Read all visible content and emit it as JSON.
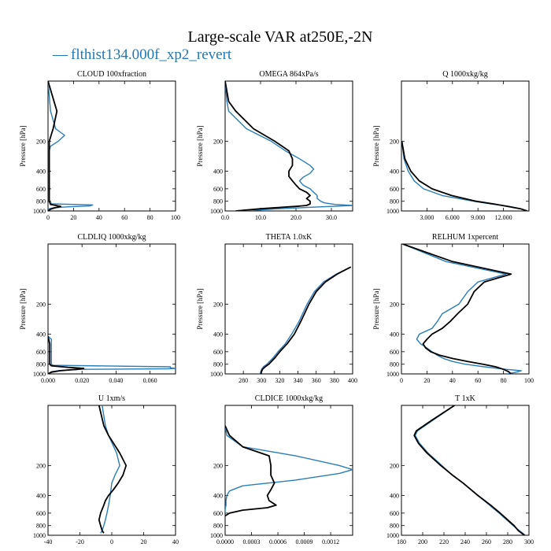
{
  "title": "Large-scale VAR at250E,-2N",
  "legend": {
    "marker": "—",
    "label": "flthist134.000f_xp2_revert",
    "color": "#2a7db8"
  },
  "colors": {
    "ref": "#000000",
    "test": "#2a7db8"
  },
  "chart_data": [
    {
      "type": "line",
      "title": "CLOUD  100xfraction",
      "ylabel": "Pressure [hPa]",
      "xlim": [
        0,
        100
      ],
      "ylim": [
        1000,
        50
      ],
      "xticks": [
        0,
        20,
        40,
        60,
        80,
        100
      ],
      "xticklabels": [
        "0",
        "20",
        "40",
        "60",
        "80",
        "100"
      ],
      "yticks": [
        200,
        400,
        600,
        800,
        1000
      ],
      "yticklabels": [
        "200",
        "400",
        "600",
        "800",
        "1000"
      ],
      "series": [
        {
          "color": "#2a7db8",
          "p": [
            50,
            100,
            150,
            175,
            200,
            225,
            250,
            300,
            400,
            500,
            600,
            700,
            800,
            850,
            870,
            890,
            910,
            930,
            950,
            980,
            1000
          ],
          "x": [
            0,
            2,
            6,
            13,
            8,
            2,
            1,
            1,
            1,
            1,
            1,
            1,
            1,
            3,
            35,
            33,
            15,
            4,
            1,
            0,
            0
          ]
        },
        {
          "color": "#000000",
          "p": [
            50,
            100,
            150,
            200,
            300,
            400,
            500,
            600,
            700,
            800,
            860,
            880,
            900,
            920,
            940,
            960,
            980,
            1000
          ],
          "x": [
            0,
            7,
            4,
            1,
            1,
            1,
            1,
            1,
            1,
            1,
            2,
            6,
            10,
            7,
            4,
            2,
            1,
            0
          ]
        }
      ]
    },
    {
      "type": "line",
      "title": "OMEGA  864xPa/s",
      "ylabel": "Pressure [hPa]",
      "xlim": [
        0,
        36
      ],
      "ylim": [
        1000,
        50
      ],
      "xticks": [
        0,
        10,
        20,
        30
      ],
      "xticklabels": [
        "0.0",
        "10.0",
        "20.0",
        "30.0"
      ],
      "yticks": [
        200,
        400,
        600,
        800,
        1000
      ],
      "yticklabels": [
        "200",
        "400",
        "600",
        "800",
        "1000"
      ],
      "series": [
        {
          "color": "#2a7db8",
          "p": [
            50,
            80,
            100,
            150,
            200,
            250,
            300,
            350,
            380,
            420,
            460,
            500,
            550,
            600,
            650,
            700,
            750,
            800,
            830,
            860,
            880,
            900,
            950,
            1000
          ],
          "x": [
            0,
            0.5,
            1,
            6,
            13,
            17,
            21,
            24,
            25,
            24,
            22,
            21,
            22,
            24,
            25,
            26,
            26,
            27,
            28,
            31,
            36,
            30,
            15,
            5
          ]
        },
        {
          "color": "#000000",
          "p": [
            50,
            80,
            100,
            150,
            200,
            250,
            300,
            350,
            400,
            450,
            500,
            550,
            600,
            650,
            700,
            750,
            800,
            850,
            880,
            900,
            950,
            1000
          ],
          "x": [
            0,
            1,
            3,
            8,
            14,
            18,
            19,
            19,
            18,
            18,
            19,
            20,
            21,
            23,
            24,
            23,
            24,
            24,
            23,
            20,
            10,
            3
          ]
        }
      ]
    },
    {
      "type": "line",
      "title": "Q  1000xkg/kg",
      "ylabel": "Pressure [hPa]",
      "xlim": [
        0,
        15
      ],
      "ylim": [
        1000,
        50
      ],
      "xticks": [
        3,
        6,
        9,
        12
      ],
      "xticklabels": [
        "3.000",
        "6.000",
        "9.000",
        "12.000"
      ],
      "yticks": [
        200,
        400,
        600,
        800,
        1000
      ],
      "yticklabels": [
        "200",
        "400",
        "600",
        "800",
        "1000"
      ],
      "series": [
        {
          "color": "#2a7db8",
          "p": [
            200,
            300,
            400,
            500,
            600,
            700,
            800,
            850,
            900,
            950,
            1000
          ],
          "x": [
            0.05,
            0.3,
            0.8,
            1.5,
            2.6,
            4.8,
            8.5,
            10.5,
            12.7,
            14.0,
            14.8
          ]
        },
        {
          "color": "#000000",
          "p": [
            200,
            300,
            400,
            500,
            600,
            700,
            800,
            850,
            900,
            950,
            1000
          ],
          "x": [
            0.05,
            0.4,
            1.1,
            2.1,
            3.6,
            5.9,
            8.8,
            10.8,
            12.5,
            14.0,
            14.8
          ]
        }
      ]
    },
    {
      "type": "line",
      "title": "CLDLIQ  1000xkg/kg",
      "ylabel": "Pressure [hPa]",
      "xlim": [
        0,
        0.075
      ],
      "ylim": [
        1000,
        50
      ],
      "xticks": [
        0,
        0.02,
        0.04,
        0.06
      ],
      "xticklabels": [
        "0.000",
        "0.020",
        "0.040",
        "0.060"
      ],
      "yticks": [
        200,
        400,
        600,
        800,
        1000
      ],
      "yticklabels": [
        "200",
        "400",
        "600",
        "800",
        "1000"
      ],
      "series": [
        {
          "color": "#2a7db8",
          "p": [
            420,
            450,
            500,
            600,
            700,
            800,
            820,
            850,
            870,
            880,
            890,
            900,
            920,
            950,
            1000
          ],
          "x": [
            0,
            0.002,
            0.002,
            0.002,
            0.002,
            0.002,
            0.003,
            0.072,
            0.072,
            0.075,
            0.07,
            0.02,
            0.008,
            0.002,
            0
          ]
        },
        {
          "color": "#000000",
          "p": [
            420,
            500,
            600,
            700,
            800,
            830,
            860,
            880,
            900,
            930,
            960,
            1000
          ],
          "x": [
            0,
            0.001,
            0.001,
            0.001,
            0.001,
            0.002,
            0.012,
            0.021,
            0.017,
            0.007,
            0.002,
            0
          ]
        }
      ]
    },
    {
      "type": "line",
      "title": "THETA  1.0xK",
      "ylabel": "Pressure [hPa]",
      "xlim": [
        260,
        400
      ],
      "ylim": [
        1000,
        50
      ],
      "xticks": [
        280,
        300,
        320,
        340,
        360,
        380,
        400
      ],
      "xticklabels": [
        "280",
        "300",
        "320",
        "340",
        "360",
        "380",
        "400"
      ],
      "yticks": [
        200,
        400,
        600,
        800,
        1000
      ],
      "yticklabels": [
        "200",
        "400",
        "600",
        "800",
        "1000"
      ],
      "series": [
        {
          "color": "#2a7db8",
          "p": [
            85,
            100,
            120,
            150,
            200,
            300,
            400,
            500,
            600,
            700,
            800,
            850,
            900,
            950,
            1000
          ],
          "x": [
            398,
            382,
            368,
            358,
            350,
            341,
            333,
            326,
            318,
            312,
            306,
            302,
            300,
            299,
            299
          ]
        },
        {
          "color": "#000000",
          "p": [
            85,
            100,
            120,
            150,
            200,
            300,
            400,
            500,
            600,
            700,
            800,
            850,
            900,
            950,
            1000
          ],
          "x": [
            398,
            383,
            370,
            360,
            352,
            343,
            336,
            328,
            320,
            314,
            308,
            304,
            301,
            300,
            299
          ]
        }
      ]
    },
    {
      "type": "line",
      "title": "RELHUM  1xpercent",
      "ylabel": "Pressure [hPa]",
      "xlim": [
        0,
        100
      ],
      "ylim": [
        1000,
        50
      ],
      "xticks": [
        0,
        20,
        40,
        60,
        80,
        100
      ],
      "xticklabels": [
        "0",
        "20",
        "40",
        "60",
        "80",
        "100"
      ],
      "yticks": [
        200,
        400,
        600,
        800,
        1000
      ],
      "yticklabels": [
        "200",
        "400",
        "600",
        "800",
        "1000"
      ],
      "series": [
        {
          "color": "#2a7db8",
          "p": [
            50,
            75,
            100,
            120,
            150,
            200,
            250,
            300,
            350,
            400,
            450,
            500,
            550,
            600,
            650,
            700,
            750,
            800,
            850,
            900,
            930,
            960,
            1000
          ],
          "x": [
            1,
            35,
            82,
            60,
            52,
            45,
            32,
            28,
            24,
            14,
            12,
            15,
            20,
            24,
            28,
            33,
            40,
            50,
            65,
            82,
            94,
            90,
            83
          ]
        },
        {
          "color": "#000000",
          "p": [
            50,
            75,
            100,
            120,
            150,
            200,
            250,
            300,
            350,
            400,
            450,
            500,
            550,
            600,
            650,
            700,
            750,
            800,
            850,
            900,
            950,
            1000
          ],
          "x": [
            1,
            40,
            86,
            65,
            57,
            52,
            44,
            38,
            32,
            24,
            20,
            17,
            19,
            23,
            30,
            40,
            52,
            64,
            74,
            80,
            84,
            86
          ]
        }
      ]
    },
    {
      "type": "line",
      "title": "U  1xm/s",
      "ylabel": "",
      "xlim": [
        -40,
        40
      ],
      "ylim": [
        1000,
        50
      ],
      "xticks": [
        -40,
        -20,
        0,
        20,
        40
      ],
      "xticklabels": [
        "-40",
        "-20",
        "0",
        "20",
        "40"
      ],
      "yticks": [
        200,
        400,
        600,
        800,
        1000
      ],
      "yticklabels": [
        "200",
        "400",
        "600",
        "800",
        "1000"
      ],
      "series": [
        {
          "color": "#2a7db8",
          "p": [
            50,
            80,
            100,
            150,
            200,
            250,
            300,
            400,
            500,
            600,
            700,
            800,
            900,
            950
          ],
          "x": [
            -6,
            -4,
            -2,
            3,
            5,
            2,
            0,
            -1,
            -2,
            -3,
            -4,
            -5,
            -6,
            -7
          ]
        },
        {
          "color": "#000000",
          "p": [
            50,
            80,
            100,
            150,
            200,
            250,
            300,
            350,
            400,
            450,
            500,
            600,
            700,
            800,
            900,
            950
          ],
          "x": [
            -8,
            -5,
            -2,
            5,
            9,
            7,
            4,
            1,
            -2,
            -4,
            -5,
            -7,
            -8,
            -7,
            -6,
            -5
          ]
        }
      ]
    },
    {
      "type": "line",
      "title": "CLDICE  1000xkg/kg",
      "ylabel": "",
      "xlim": [
        0,
        0.00145
      ],
      "ylim": [
        1000,
        50
      ],
      "xticks": [
        0,
        0.0003,
        0.0006,
        0.0009,
        0.0012
      ],
      "xticklabels": [
        "0.0000",
        "0.0003",
        "0.0006",
        "0.0009",
        "0.0012"
      ],
      "yticks": [
        200,
        400,
        600,
        800,
        1000
      ],
      "yticklabels": [
        "200",
        "400",
        "600",
        "800",
        "1000"
      ],
      "series": [
        {
          "color": "#2a7db8",
          "p": [
            80,
            100,
            130,
            160,
            200,
            220,
            240,
            280,
            320,
            360,
            400,
            450,
            500,
            550,
            600
          ],
          "x": [
            0,
            2e-05,
            0.0002,
            0.0008,
            0.0013,
            0.00145,
            0.0013,
            0.0008,
            0.0002,
            5e-05,
            2e-05,
            1e-05,
            1e-05,
            0,
            0
          ]
        },
        {
          "color": "#000000",
          "p": [
            80,
            100,
            130,
            160,
            200,
            250,
            300,
            350,
            400,
            450,
            500,
            530,
            560,
            600,
            640
          ],
          "x": [
            0,
            5e-05,
            0.0002,
            0.0005,
            0.00052,
            0.00052,
            0.00056,
            0.00052,
            0.00048,
            0.0005,
            0.00058,
            0.00048,
            0.0002,
            5e-05,
            0
          ]
        }
      ]
    },
    {
      "type": "line",
      "title": "T  1xK",
      "ylabel": "",
      "xlim": [
        180,
        300
      ],
      "ylim": [
        1000,
        50
      ],
      "xticks": [
        180,
        200,
        220,
        240,
        260,
        280,
        300
      ],
      "xticklabels": [
        "180",
        "200",
        "220",
        "240",
        "260",
        "280",
        "300"
      ],
      "yticks": [
        200,
        400,
        600,
        800,
        1000
      ],
      "yticklabels": [
        "200",
        "400",
        "600",
        "800",
        "1000"
      ],
      "series": [
        {
          "color": "#2a7db8",
          "p": [
            50,
            70,
            90,
            100,
            120,
            150,
            200,
            250,
            300,
            400,
            500,
            600,
            700,
            800,
            900,
            950,
            1000
          ],
          "x": [
            230,
            210,
            195,
            193,
            197,
            205,
            218,
            228,
            238,
            252,
            263,
            272,
            279,
            285,
            291,
            294,
            296
          ]
        },
        {
          "color": "#000000",
          "p": [
            50,
            70,
            90,
            100,
            120,
            150,
            200,
            250,
            300,
            400,
            500,
            600,
            700,
            800,
            900,
            950,
            1000
          ],
          "x": [
            230,
            209,
            194,
            192,
            196,
            204,
            217,
            228,
            238,
            252,
            264,
            273,
            280,
            286,
            290,
            293,
            296
          ]
        }
      ]
    }
  ]
}
